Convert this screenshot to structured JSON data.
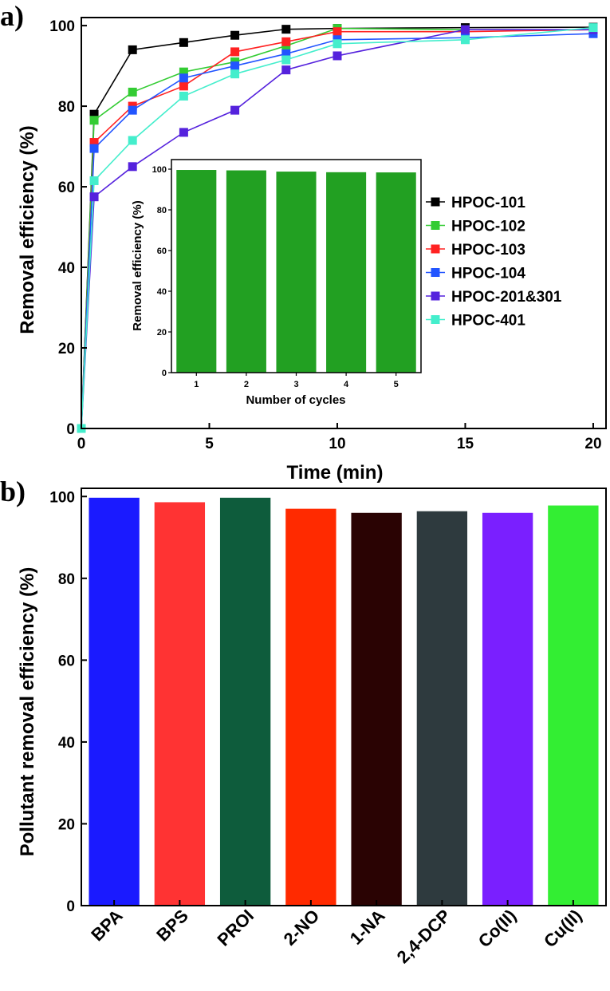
{
  "chart_data": [
    {
      "panel_label": "a)",
      "type": "line",
      "xlabel": "Time (min)",
      "ylabel": "Removal efficiency (%)",
      "xlim": [
        0,
        20.5
      ],
      "ylim": [
        0,
        102
      ],
      "xticks": [
        "0",
        "5",
        "10",
        "15",
        "20"
      ],
      "xtick_values": [
        0,
        5,
        10,
        15,
        20
      ],
      "yticks": [
        "0",
        "20",
        "40",
        "60",
        "80",
        "100"
      ],
      "ytick_values": [
        0,
        20,
        40,
        60,
        80,
        100
      ],
      "x": [
        0,
        0.5,
        2,
        4,
        6,
        8,
        10,
        15,
        20
      ],
      "series": [
        {
          "name": "HPOC-101",
          "color": "#000000",
          "values": [
            0,
            78,
            94,
            95.8,
            97.6,
            99.1,
            99.3,
            99.5,
            99.6
          ]
        },
        {
          "name": "HPOC-102",
          "color": "#33cc33",
          "values": [
            0,
            76.5,
            83.5,
            88.5,
            91,
            95,
            99.3,
            99,
            99
          ]
        },
        {
          "name": "HPOC-103",
          "color": "#ff2222",
          "values": [
            0,
            71,
            80,
            85,
            93.5,
            96,
            98.5,
            98.5,
            99
          ]
        },
        {
          "name": "HPOC-104",
          "color": "#2255ff",
          "values": [
            0,
            69.5,
            79,
            87,
            90,
            93,
            96.5,
            97,
            98
          ]
        },
        {
          "name": "HPOC-201&301",
          "color": "#5522dd",
          "values": [
            0,
            57.5,
            65,
            73.5,
            79,
            89,
            92.5,
            99,
            99
          ]
        },
        {
          "name": "HPOC-401",
          "color": "#44eecc",
          "values": [
            0,
            61.5,
            71.5,
            82.5,
            88,
            91.5,
            95.5,
            96.5,
            99.5
          ]
        }
      ]
    },
    {
      "panel_label": "inset",
      "type": "bar",
      "xlabel": "Number of cycles",
      "ylabel": "Removal efficiency (%)",
      "ylim": [
        0,
        100
      ],
      "yticks": [
        "0",
        "20",
        "40",
        "60",
        "80",
        "100"
      ],
      "ytick_values": [
        0,
        20,
        40,
        60,
        80,
        100
      ],
      "categories": [
        "1",
        "2",
        "3",
        "4",
        "5"
      ],
      "values": [
        99.6,
        99.4,
        98.8,
        98.5,
        98.4
      ],
      "color": "#22a022"
    },
    {
      "panel_label": "b)",
      "type": "bar",
      "xlabel": "",
      "ylabel": "Pollutant removal efficiency (%)",
      "ylim": [
        0,
        102
      ],
      "yticks": [
        "0",
        "20",
        "40",
        "60",
        "80",
        "100"
      ],
      "ytick_values": [
        0,
        20,
        40,
        60,
        80,
        100
      ],
      "categories": [
        "BPA",
        "BPS",
        "PROI",
        "2-NO",
        "1-NA",
        "2,4-DCP",
        "Co(II)",
        "Cu(II)"
      ],
      "values": [
        99.7,
        98.6,
        99.7,
        97,
        96,
        96.4,
        96,
        97.8
      ],
      "colors": [
        "#1a1aff",
        "#ff3333",
        "#0e5c3c",
        "#ff2a00",
        "#2a0303",
        "#2e3a3e",
        "#7a1fff",
        "#33ee33"
      ]
    }
  ]
}
